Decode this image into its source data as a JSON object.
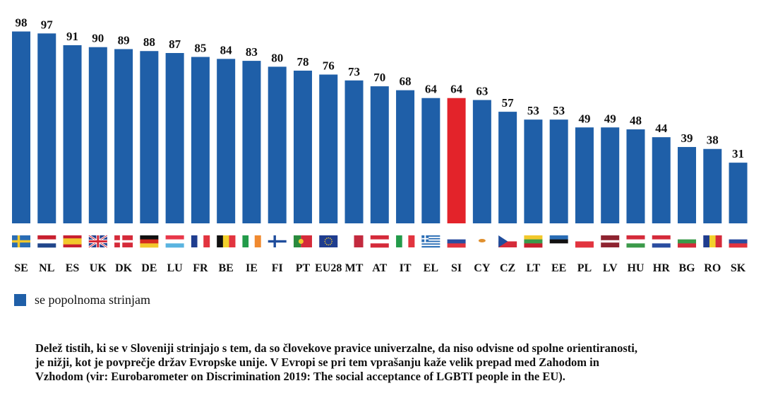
{
  "chart_data": {
    "type": "bar",
    "title": "",
    "xlabel": "",
    "ylabel": "",
    "ylim": [
      0,
      100
    ],
    "grid": false,
    "categories": [
      "SE",
      "NL",
      "ES",
      "UK",
      "DK",
      "DE",
      "LU",
      "FR",
      "BE",
      "IE",
      "FI",
      "PT",
      "EU28",
      "MT",
      "AT",
      "IT",
      "EL",
      "SI",
      "CY",
      "CZ",
      "LT",
      "EE",
      "PL",
      "LV",
      "HU",
      "HR",
      "BG",
      "RO",
      "SK"
    ],
    "series": [
      {
        "name": "se popolnoma strinjam",
        "color": "#1f5fa8",
        "values": [
          98,
          97,
          91,
          90,
          89,
          88,
          87,
          85,
          84,
          83,
          80,
          78,
          76,
          73,
          70,
          68,
          64,
          64,
          63,
          57,
          53,
          53,
          49,
          49,
          48,
          44,
          39,
          38,
          31
        ]
      }
    ],
    "highlight": {
      "category": "SI",
      "color": "#e3232a"
    },
    "data_labels": true,
    "legend": {
      "position": "bottom-left",
      "entries": [
        "se popolnoma strinjam"
      ]
    },
    "category_flags": true
  },
  "legend": {
    "label": "se popolnoma strinjam",
    "color": "#1f5fa8"
  },
  "caption": {
    "lines": [
      "Delež tistih, ki se v Sloveniji strinjajo s tem, da so človekove pravice univerzalne, da niso odvisne od spolne orientiranosti,",
      "je nižji, kot je povprečje držav Evropske unije. V Evropi se pri tem vprašanju kaže velik prepad med Zahodom in",
      "Vzhodom (vir: Eurobarometer on Discrimination 2019: The social acceptance of LGBTI people in the EU)."
    ]
  }
}
